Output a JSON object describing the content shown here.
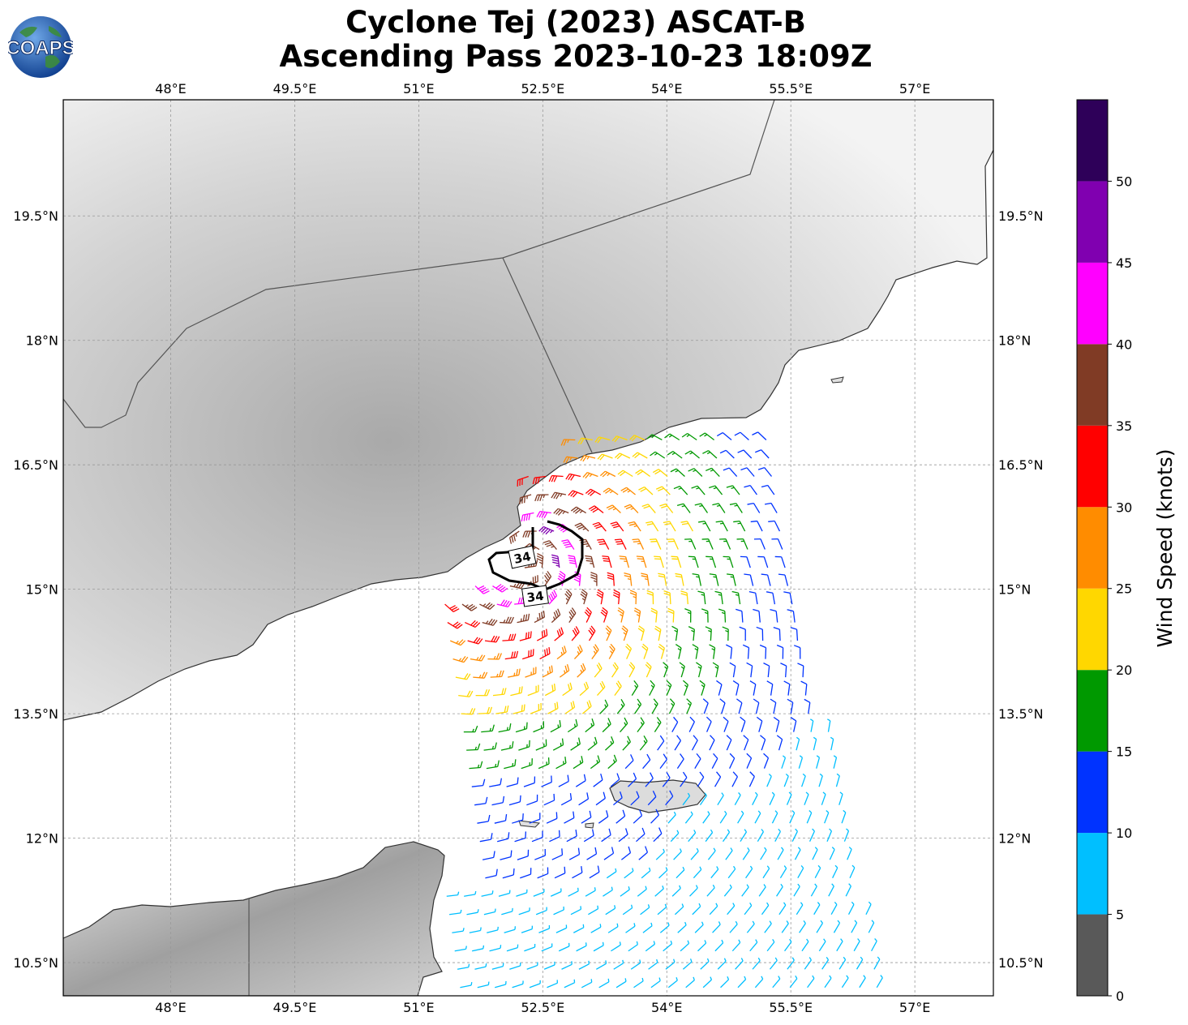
{
  "title": {
    "line1": "Cyclone Tej (2023) ASCAT-B",
    "line2": "Ascending Pass 2023-10-23 18:09Z"
  },
  "logo": {
    "text": "COAPS",
    "icon": "globe-icon"
  },
  "map": {
    "lon_range": [
      46.7,
      57.95
    ],
    "lat_range": [
      10.1,
      20.9
    ],
    "lon_ticks": [
      "48°E",
      "49.5°E",
      "51°E",
      "52.5°E",
      "54°E",
      "55.5°E",
      "57°E"
    ],
    "lon_tick_values": [
      48,
      49.5,
      51,
      52.5,
      54,
      55.5,
      57
    ],
    "lat_ticks": [
      "10.5°N",
      "12°N",
      "13.5°N",
      "15°N",
      "16.5°N",
      "18°N",
      "19.5°N"
    ],
    "lat_tick_values": [
      10.5,
      12,
      13.5,
      15,
      16.5,
      18,
      19.5
    ],
    "grid": true,
    "wind_radius_labels": [
      "34",
      "34"
    ]
  },
  "colorbar": {
    "label": "Wind Speed (knots)",
    "ticks": [
      "0",
      "5",
      "10",
      "15",
      "20",
      "25",
      "30",
      "35",
      "40",
      "45",
      "50"
    ],
    "bins": [
      {
        "range": [
          0,
          5
        ],
        "color": "#595959"
      },
      {
        "range": [
          5,
          10
        ],
        "color": "#00bfff"
      },
      {
        "range": [
          10,
          15
        ],
        "color": "#0033ff"
      },
      {
        "range": [
          15,
          20
        ],
        "color": "#009900"
      },
      {
        "range": [
          20,
          25
        ],
        "color": "#ffd700"
      },
      {
        "range": [
          25,
          30
        ],
        "color": "#ff8c00"
      },
      {
        "range": [
          30,
          35
        ],
        "color": "#ff0000"
      },
      {
        "range": [
          35,
          40
        ],
        "color": "#803b25"
      },
      {
        "range": [
          40,
          45
        ],
        "color": "#ff00ff"
      },
      {
        "range": [
          45,
          50
        ],
        "color": "#8000b0"
      },
      {
        "range": [
          50,
          55
        ],
        "color": "#2e0059"
      }
    ]
  }
}
